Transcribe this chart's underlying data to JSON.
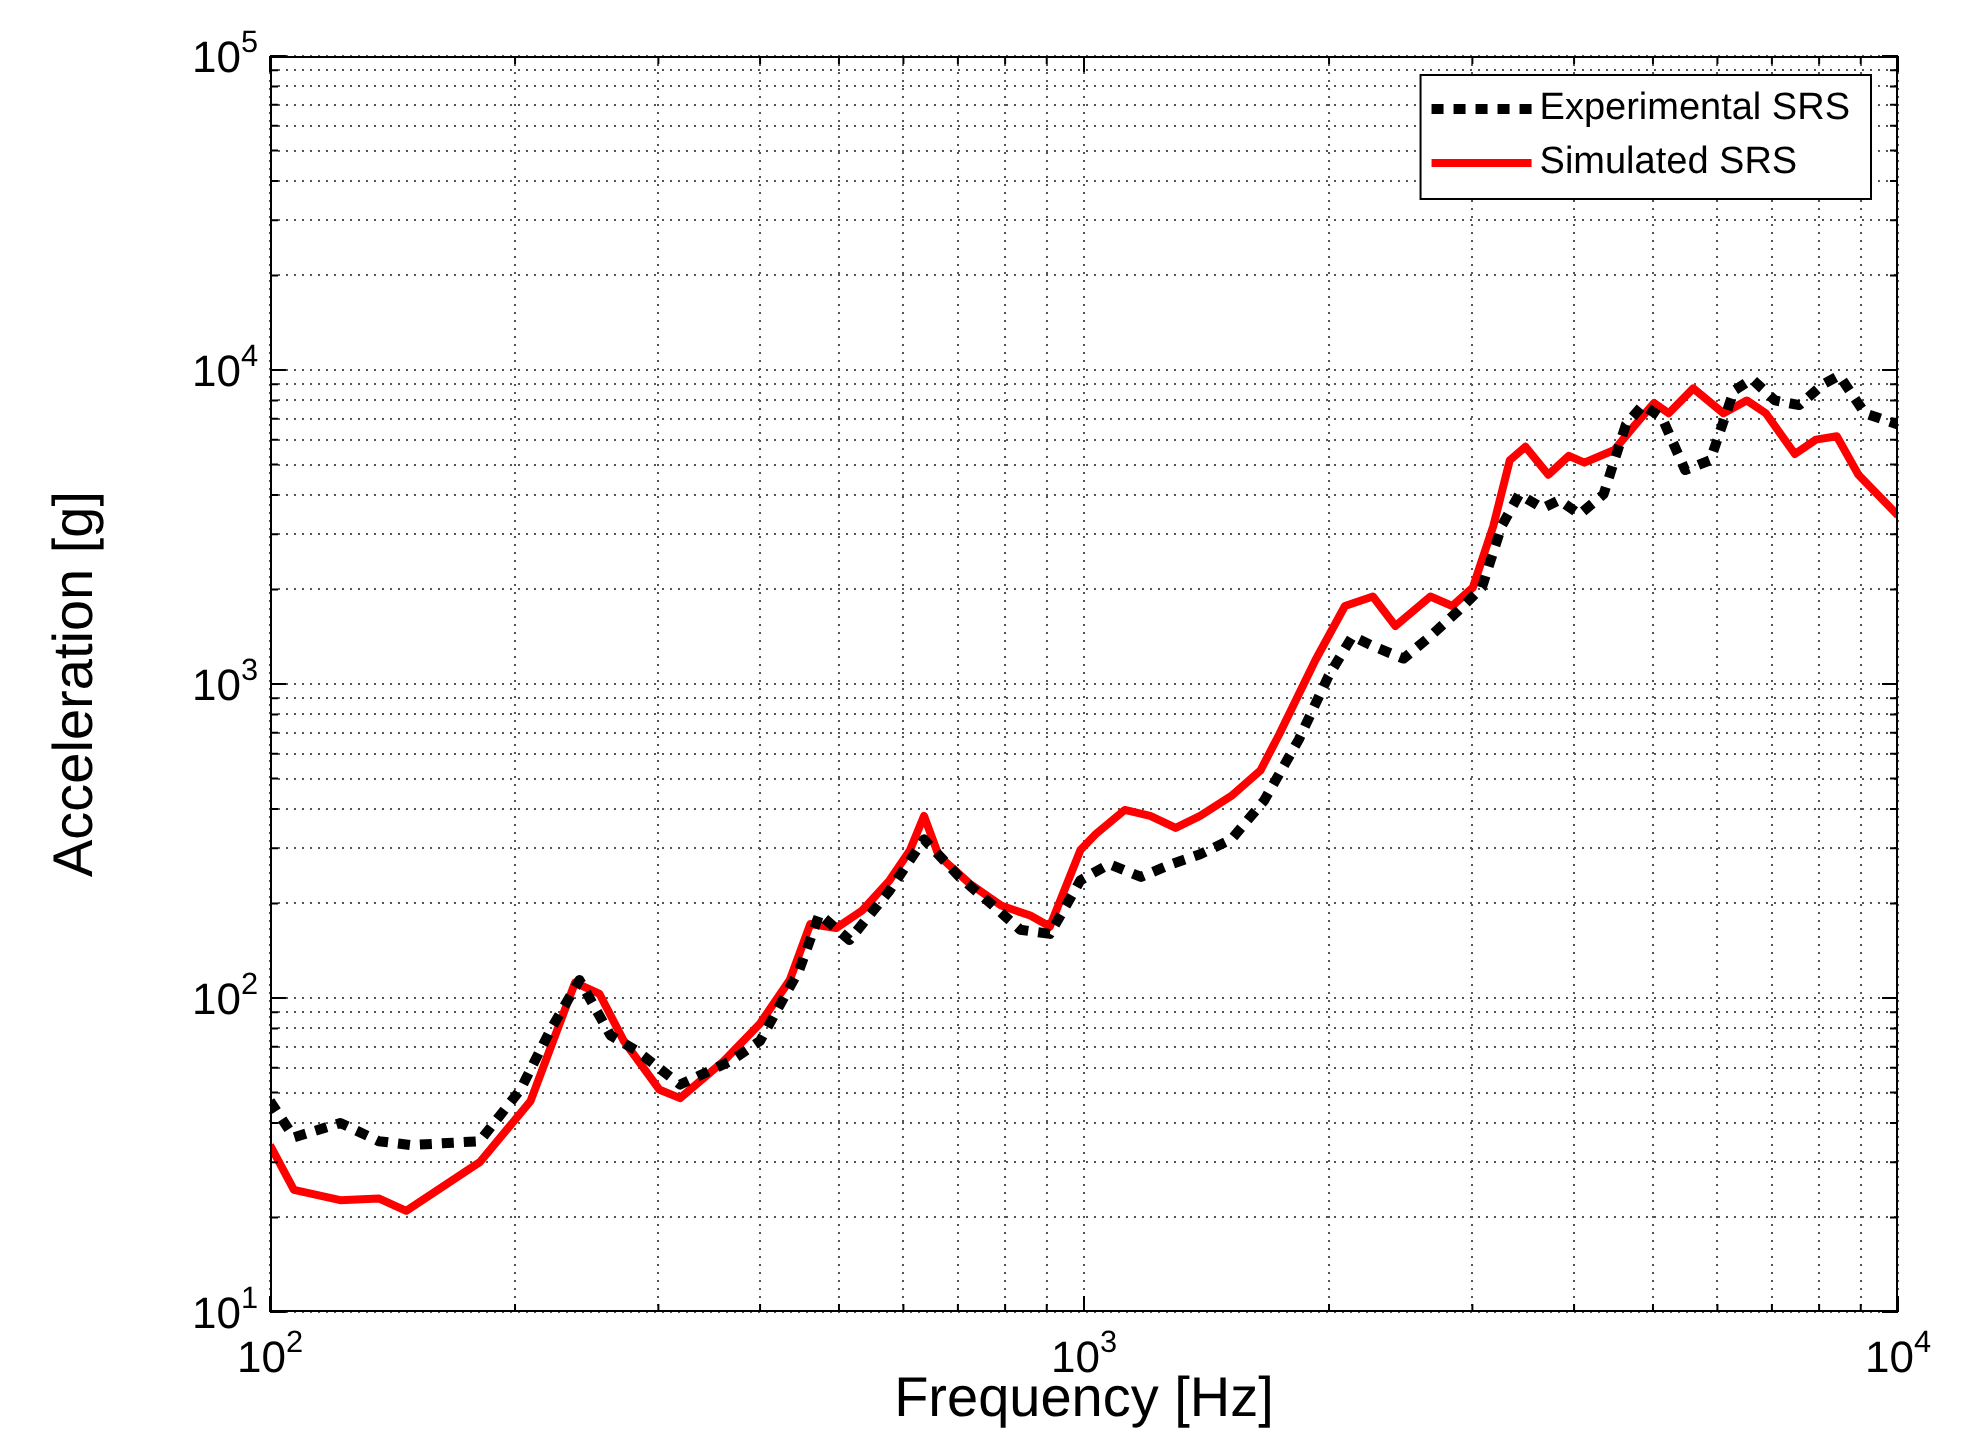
{
  "chart_data": {
    "type": "line",
    "xlabel": "Frequency [Hz]",
    "ylabel": "Acceleration [g]",
    "log": "xy",
    "grid": true,
    "legend": "top right",
    "marker": "none",
    "xlim": [
      100,
      10000
    ],
    "ylim": [
      10,
      100000
    ],
    "xticks": [
      {
        "value": 100,
        "label": "10$^{2}$"
      },
      {
        "value": 200,
        "label": null
      },
      {
        "value": 300,
        "label": null
      },
      {
        "value": 400,
        "label": null
      },
      {
        "value": 500,
        "label": null
      },
      {
        "value": 600,
        "label": null
      },
      {
        "value": 700,
        "label": null
      },
      {
        "value": 800,
        "label": null
      },
      {
        "value": 900,
        "label": null
      },
      {
        "value": 1000,
        "label": "10$^{3}$"
      },
      {
        "value": 2000,
        "label": null
      },
      {
        "value": 3000,
        "label": null
      },
      {
        "value": 4000,
        "label": null
      },
      {
        "value": 5000,
        "label": null
      },
      {
        "value": 6000,
        "label": null
      },
      {
        "value": 7000,
        "label": null
      },
      {
        "value": 8000,
        "label": null
      },
      {
        "value": 9000,
        "label": null
      },
      {
        "value": 10000,
        "label": "10$^{4}$"
      }
    ],
    "yticks": [
      {
        "value": 10,
        "label": "10$^{1}$"
      },
      {
        "value": 20,
        "label": null
      },
      {
        "value": 30,
        "label": null
      },
      {
        "value": 40,
        "label": null
      },
      {
        "value": 50,
        "label": null
      },
      {
        "value": 60,
        "label": null
      },
      {
        "value": 70,
        "label": null
      },
      {
        "value": 80,
        "label": null
      },
      {
        "value": 90,
        "label": null
      },
      {
        "value": 100,
        "label": "10$^{2}$"
      },
      {
        "value": 200,
        "label": null
      },
      {
        "value": 300,
        "label": null
      },
      {
        "value": 400,
        "label": null
      },
      {
        "value": 500,
        "label": null
      },
      {
        "value": 600,
        "label": null
      },
      {
        "value": 700,
        "label": null
      },
      {
        "value": 800,
        "label": null
      },
      {
        "value": 900,
        "label": null
      },
      {
        "value": 1000,
        "label": "10$^{3}$"
      },
      {
        "value": 2000,
        "label": null
      },
      {
        "value": 3000,
        "label": null
      },
      {
        "value": 4000,
        "label": null
      },
      {
        "value": 5000,
        "label": null
      },
      {
        "value": 6000,
        "label": null
      },
      {
        "value": 7000,
        "label": null
      },
      {
        "value": 8000,
        "label": null
      },
      {
        "value": 9000,
        "label": null
      },
      {
        "value": 10000,
        "label": "10$^{4}$"
      },
      {
        "value": 20000,
        "label": null
      },
      {
        "value": 30000,
        "label": null
      },
      {
        "value": 40000,
        "label": null
      },
      {
        "value": 50000,
        "label": null
      },
      {
        "value": 60000,
        "label": null
      },
      {
        "value": 70000,
        "label": null
      },
      {
        "value": 80000,
        "label": null
      },
      {
        "value": 90000,
        "label": null
      },
      {
        "value": 100000,
        "label": "10$^{5}$"
      }
    ],
    "series": [
      {
        "name": "Experimental SRS",
        "color": "#000000",
        "line_style": "dashed",
        "x": [
          100,
          107,
          122,
          136,
          149,
          181,
          203,
          221,
          240,
          262,
          282,
          319,
          368,
          400,
          447,
          473,
          515,
          577,
          636,
          703,
          768,
          835,
          908,
          990,
          1074,
          1175,
          1281,
          1389,
          1517,
          1664,
          1836,
          1997,
          2137,
          2264,
          2469,
          2664,
          2889,
          3082,
          3259,
          3425,
          3660,
          3836,
          4063,
          4348,
          4632,
          4859,
          5132,
          5476,
          5880,
          6287,
          6617,
          7060,
          7564,
          8087,
          8471,
          9107,
          10000
        ],
        "values": [
          47,
          36,
          40,
          35,
          34,
          35,
          51,
          79,
          114,
          76,
          68,
          53,
          63,
          73,
          123,
          185,
          153,
          220,
          320,
          243,
          200,
          165,
          160,
          237,
          267,
          243,
          267,
          287,
          320,
          425,
          665,
          1060,
          1420,
          1320,
          1205,
          1420,
          1720,
          2030,
          3185,
          4020,
          3630,
          3850,
          3470,
          4020,
          6700,
          7730,
          7030,
          4800,
          5160,
          8600,
          9360,
          8000,
          7730,
          9000,
          9600,
          7280,
          6700
        ]
      },
      {
        "name": "Simulated SRS",
        "color": "#ff0000",
        "line_style": "solid",
        "x": [
          100,
          107,
          122,
          136,
          147,
          181,
          209,
          237,
          254,
          272,
          301,
          319,
          361,
          400,
          435,
          461,
          496,
          534,
          577,
          611,
          636,
          663,
          724,
          791,
          859,
          908,
          990,
          1034,
          1122,
          1206,
          1296,
          1389,
          1517,
          1647,
          1738,
          1924,
          2092,
          2264,
          2413,
          2664,
          2834,
          3004,
          3183,
          3335,
          3486,
          3719,
          3942,
          4118,
          4482,
          4756,
          5015,
          5228,
          5604,
          6105,
          6518,
          6880,
          7470,
          7930,
          8410,
          8940,
          10000
        ],
        "values": [
          34,
          24.5,
          22.7,
          23,
          21,
          30,
          47,
          112,
          103,
          73,
          51,
          48,
          63,
          83,
          114,
          172,
          167,
          190,
          237,
          295,
          380,
          284,
          231,
          197,
          183,
          169,
          296,
          333,
          397,
          380,
          348,
          380,
          440,
          530,
          693,
          1190,
          1772,
          1900,
          1530,
          1900,
          1772,
          2030,
          3185,
          5160,
          5700,
          4640,
          5330,
          5070,
          5560,
          6700,
          7850,
          7280,
          8740,
          7280,
          8000,
          7280,
          5400,
          6000,
          6150,
          4640,
          3440
        ]
      }
    ]
  }
}
